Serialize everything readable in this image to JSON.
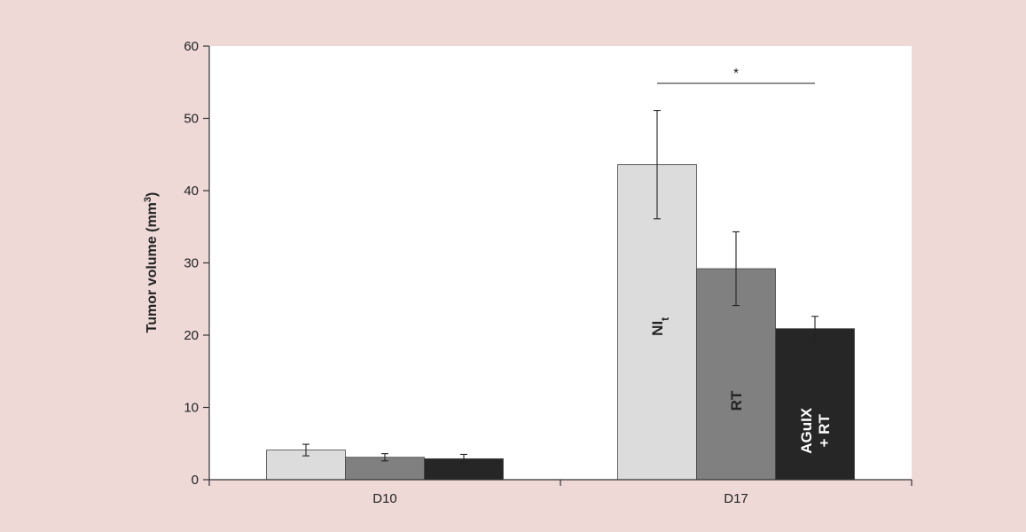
{
  "chart_data": {
    "type": "bar",
    "categories": [
      "D10",
      "D17"
    ],
    "ylabel": "Tumor volume (mm³)",
    "ylabel_main": "Tumor volume (mm",
    "ylabel_sup": "3",
    "ylabel_close": ")",
    "ylim": [
      0,
      60
    ],
    "yticks": [
      "0",
      "10",
      "20",
      "30",
      "40",
      "50",
      "60"
    ],
    "grid": false,
    "legend": "none",
    "series": [
      {
        "name": "NIt",
        "label_main": "NI",
        "label_sub": "t",
        "color": "#dcdcdc",
        "values": [
          4.1,
          43.6
        ],
        "errors": [
          0.8,
          7.5
        ]
      },
      {
        "name": "RT",
        "label_main": "RT",
        "label_sub": "",
        "color": "#808080",
        "values": [
          3.1,
          29.2
        ],
        "errors": [
          0.5,
          5.1
        ]
      },
      {
        "name": "AGuIX + RT",
        "label_main": "AGuIX",
        "label_line2": "+ RT",
        "label_sub": "",
        "color": "#262626",
        "values": [
          2.9,
          20.9
        ],
        "errors": [
          0.6,
          1.7
        ]
      }
    ],
    "annotations": [
      {
        "text": "*",
        "from_series": 0,
        "to_series": 2,
        "category": 1
      }
    ]
  }
}
